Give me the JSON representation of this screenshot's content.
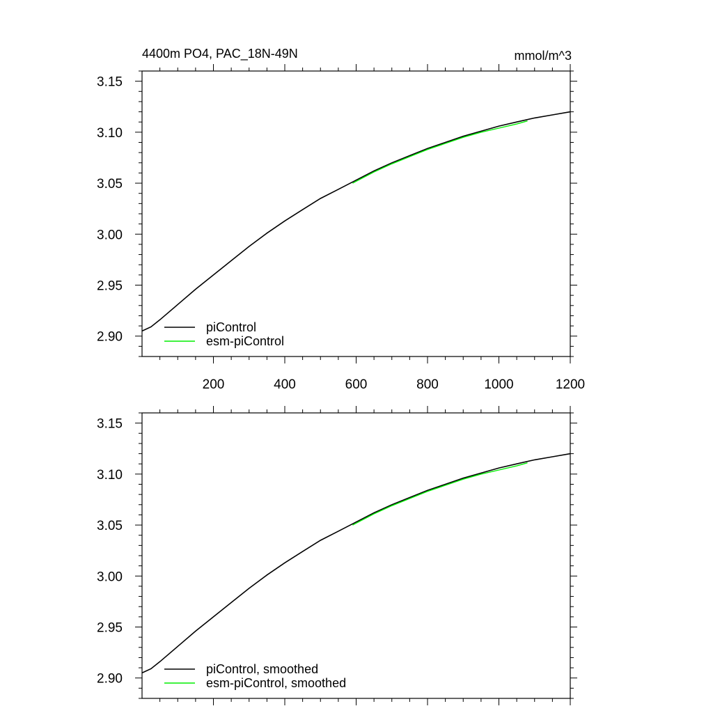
{
  "chart_data": [
    {
      "type": "line",
      "title": "4400m PO4, PAC_18N-49N",
      "title_right": "mmol/m^3",
      "xlabel": "",
      "ylabel": "",
      "xlim": [
        0,
        1200
      ],
      "ylim": [
        2.88,
        3.16
      ],
      "x_ticks": [
        200,
        400,
        600,
        800,
        1000,
        1200
      ],
      "x_tick_labels": [
        "200",
        "400",
        "600",
        "800",
        "1000",
        "1200"
      ],
      "y_ticks": [
        2.9,
        2.95,
        3.0,
        3.05,
        3.1,
        3.15
      ],
      "y_tick_labels": [
        "2.90",
        "2.95",
        "3.00",
        "3.05",
        "3.10",
        "3.15"
      ],
      "grid": false,
      "legend_position": "bottom-left",
      "series": [
        {
          "name": "piControl",
          "color": "#000000",
          "x": [
            0,
            25,
            50,
            100,
            150,
            200,
            250,
            300,
            350,
            400,
            450,
            500,
            550,
            600,
            650,
            700,
            750,
            800,
            850,
            900,
            950,
            1000,
            1050,
            1100,
            1150,
            1200
          ],
          "y": [
            2.905,
            2.909,
            2.916,
            2.931,
            2.946,
            2.96,
            2.974,
            2.988,
            3.001,
            3.013,
            3.024,
            3.035,
            3.044,
            3.053,
            3.062,
            3.07,
            3.077,
            3.084,
            3.09,
            3.096,
            3.101,
            3.106,
            3.11,
            3.114,
            3.117,
            3.12
          ]
        },
        {
          "name": "esm-piControl",
          "color": "#00ee00",
          "x": [
            590,
            650,
            700,
            750,
            800,
            850,
            900,
            950,
            1000,
            1050,
            1080
          ],
          "y": [
            3.05,
            3.061,
            3.069,
            3.076,
            3.083,
            3.089,
            3.095,
            3.1,
            3.104,
            3.108,
            3.111
          ]
        }
      ]
    },
    {
      "type": "line",
      "title": "",
      "xlabel": "",
      "ylabel": "",
      "xlim": [
        0,
        1200
      ],
      "ylim": [
        2.88,
        3.16
      ],
      "x_ticks": [
        200,
        400,
        600,
        800,
        1000,
        1200
      ],
      "y_ticks": [
        2.9,
        2.95,
        3.0,
        3.05,
        3.1,
        3.15
      ],
      "y_tick_labels": [
        "2.90",
        "2.95",
        "3.00",
        "3.05",
        "3.10",
        "3.15"
      ],
      "grid": false,
      "legend_position": "bottom-left",
      "series": [
        {
          "name": "piControl, smoothed",
          "color": "#000000",
          "x": [
            0,
            25,
            50,
            100,
            150,
            200,
            250,
            300,
            350,
            400,
            450,
            500,
            550,
            600,
            650,
            700,
            750,
            800,
            850,
            900,
            950,
            1000,
            1050,
            1100,
            1150,
            1200
          ],
          "y": [
            2.905,
            2.909,
            2.916,
            2.931,
            2.946,
            2.96,
            2.974,
            2.988,
            3.001,
            3.013,
            3.024,
            3.035,
            3.044,
            3.053,
            3.062,
            3.07,
            3.077,
            3.084,
            3.09,
            3.096,
            3.101,
            3.106,
            3.11,
            3.114,
            3.117,
            3.12
          ]
        },
        {
          "name": "esm-piControl, smoothed",
          "color": "#00ee00",
          "x": [
            590,
            650,
            700,
            750,
            800,
            850,
            900,
            950,
            1000,
            1050,
            1080
          ],
          "y": [
            3.05,
            3.061,
            3.069,
            3.076,
            3.083,
            3.089,
            3.095,
            3.1,
            3.104,
            3.108,
            3.111
          ]
        }
      ]
    }
  ]
}
